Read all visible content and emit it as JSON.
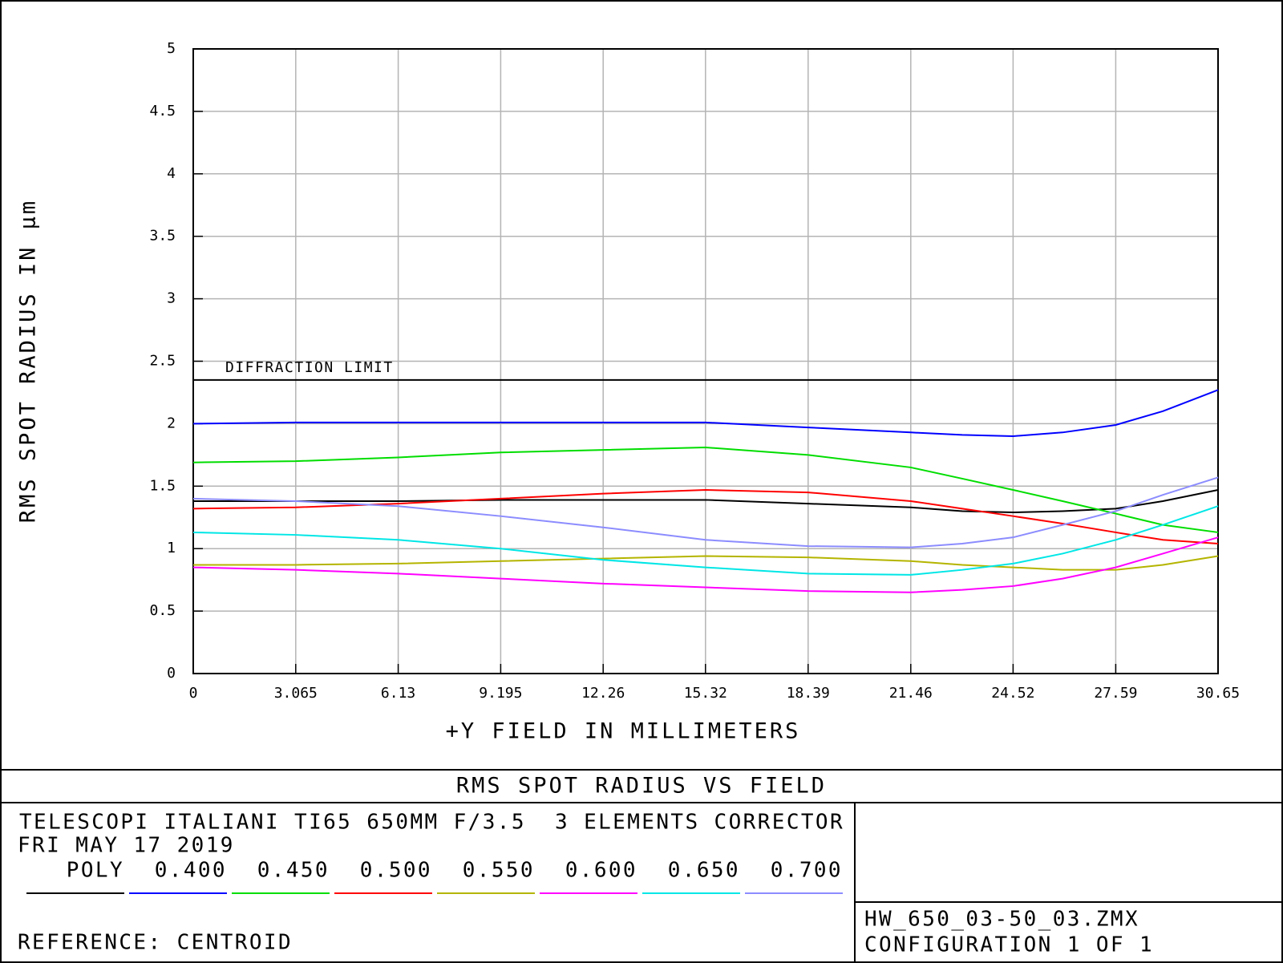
{
  "chart_data": {
    "type": "line",
    "title": "RMS SPOT RADIUS VS FIELD",
    "subtitle": "TELESCOPI ITALIANI TI65 650MM F/3.5  3 ELEMENTS CORRECTOR",
    "date": "FRI MAY 17 2019",
    "reference": "REFERENCE: CENTROID",
    "file": "HW_650_03-50_03.ZMX",
    "configuration": "CONFIGURATION 1 OF 1",
    "xlabel": "+Y FIELD IN MILLIMETERS",
    "ylabel": "RMS SPOT RADIUS IN µm",
    "xlim": [
      0,
      30.65
    ],
    "xticks": [
      0,
      3.065,
      6.13,
      9.195,
      12.26,
      15.32,
      18.39,
      21.46,
      24.52,
      27.59,
      30.65
    ],
    "ylim": [
      0,
      5
    ],
    "yticks": [
      0,
      0.5,
      1,
      1.5,
      2,
      2.5,
      3,
      3.5,
      4,
      4.5,
      5
    ],
    "grid": true,
    "reference_lines": [
      {
        "label": "DIFFRACTION LIMIT",
        "value": 2.35
      }
    ],
    "x": [
      0,
      3.065,
      6.13,
      9.195,
      12.26,
      15.32,
      18.39,
      21.46,
      23,
      24.52,
      26,
      27.59,
      29,
      30.65
    ],
    "series": [
      {
        "name": "POLY",
        "color": "#000000",
        "values": [
          1.38,
          1.38,
          1.38,
          1.39,
          1.39,
          1.39,
          1.36,
          1.33,
          1.3,
          1.29,
          1.3,
          1.32,
          1.38,
          1.47
        ]
      },
      {
        "name": "0.400",
        "color": "#0000ff",
        "values": [
          2.0,
          2.01,
          2.01,
          2.01,
          2.01,
          2.01,
          1.97,
          1.93,
          1.91,
          1.9,
          1.93,
          1.99,
          2.1,
          2.27
        ]
      },
      {
        "name": "0.450",
        "color": "#00dd00",
        "values": [
          1.69,
          1.7,
          1.73,
          1.77,
          1.79,
          1.81,
          1.75,
          1.65,
          1.56,
          1.47,
          1.38,
          1.28,
          1.19,
          1.13
        ]
      },
      {
        "name": "0.500",
        "color": "#ff0000",
        "values": [
          1.32,
          1.33,
          1.36,
          1.4,
          1.44,
          1.47,
          1.45,
          1.38,
          1.32,
          1.26,
          1.2,
          1.13,
          1.07,
          1.04
        ]
      },
      {
        "name": "0.550",
        "color": "#b4b400",
        "values": [
          0.87,
          0.87,
          0.88,
          0.9,
          0.92,
          0.94,
          0.93,
          0.9,
          0.87,
          0.85,
          0.83,
          0.83,
          0.87,
          0.94
        ]
      },
      {
        "name": "0.600",
        "color": "#ff00ff",
        "values": [
          0.85,
          0.83,
          0.8,
          0.76,
          0.72,
          0.69,
          0.66,
          0.65,
          0.67,
          0.7,
          0.76,
          0.85,
          0.96,
          1.09
        ]
      },
      {
        "name": "0.650",
        "color": "#00e6e6",
        "values": [
          1.13,
          1.11,
          1.07,
          1.0,
          0.91,
          0.85,
          0.8,
          0.79,
          0.83,
          0.88,
          0.96,
          1.07,
          1.19,
          1.34
        ]
      },
      {
        "name": "0.700",
        "color": "#8c8cff",
        "values": [
          1.4,
          1.38,
          1.34,
          1.26,
          1.17,
          1.07,
          1.02,
          1.01,
          1.04,
          1.09,
          1.19,
          1.3,
          1.43,
          1.57
        ]
      }
    ]
  }
}
